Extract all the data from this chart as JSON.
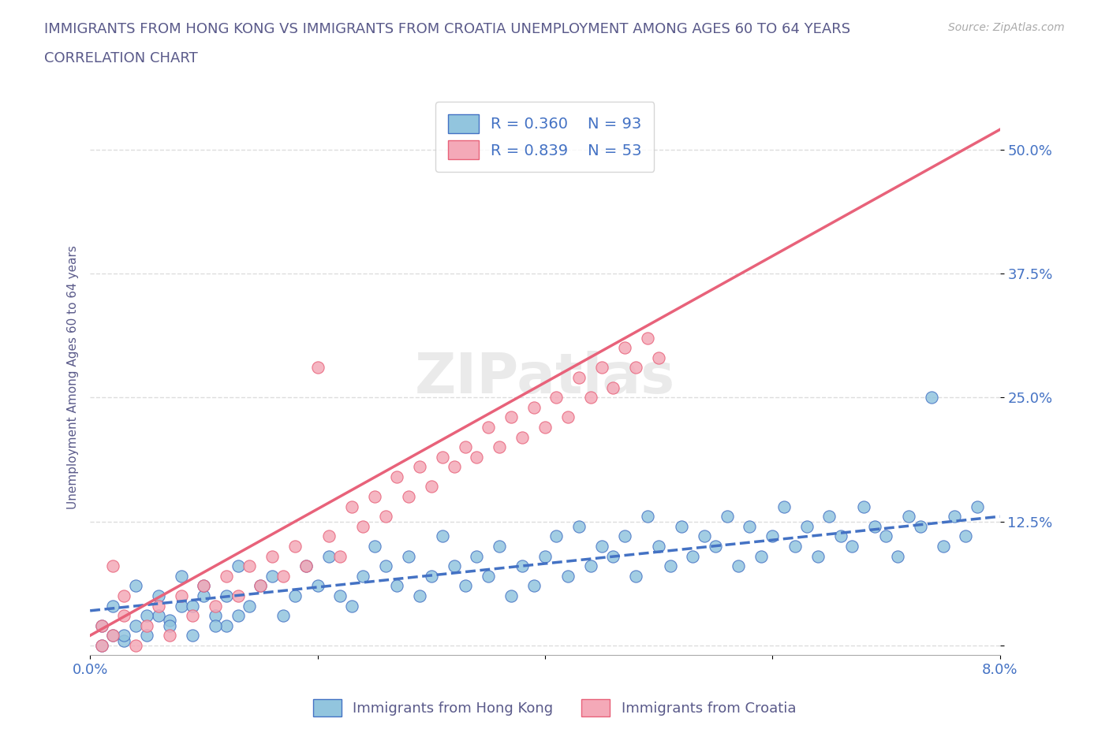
{
  "title_line1": "IMMIGRANTS FROM HONG KONG VS IMMIGRANTS FROM CROATIA UNEMPLOYMENT AMONG AGES 60 TO 64 YEARS",
  "title_line2": "CORRELATION CHART",
  "source_text": "Source: ZipAtlas.com",
  "xlabel": "",
  "ylabel": "Unemployment Among Ages 60 to 64 years",
  "xlim": [
    0.0,
    0.08
  ],
  "ylim": [
    -0.01,
    0.55
  ],
  "xtick_labels": [
    "0.0%",
    "",
    "",
    "",
    "8.0%"
  ],
  "ytick_positions": [
    0.0,
    0.125,
    0.25,
    0.375,
    0.5
  ],
  "ytick_labels": [
    "",
    "12.5%",
    "25.0%",
    "37.5%",
    "50.0%"
  ],
  "hk_color": "#92C5DE",
  "croatia_color": "#F4A9B8",
  "hk_line_color": "#4472C4",
  "croatia_line_color": "#E8627A",
  "R_hk": 0.36,
  "N_hk": 93,
  "R_croatia": 0.839,
  "N_croatia": 53,
  "watermark": "ZIPatlas",
  "legend_entries": [
    "Immigrants from Hong Kong",
    "Immigrants from Croatia"
  ],
  "background_color": "#FFFFFF",
  "grid_color": "#DDDDDD",
  "title_color": "#5A5A8A",
  "hk_scatter": [
    [
      0.001,
      0.0
    ],
    [
      0.002,
      0.01
    ],
    [
      0.003,
      0.005
    ],
    [
      0.004,
      0.02
    ],
    [
      0.005,
      0.01
    ],
    [
      0.006,
      0.03
    ],
    [
      0.007,
      0.025
    ],
    [
      0.008,
      0.04
    ],
    [
      0.009,
      0.01
    ],
    [
      0.01,
      0.05
    ],
    [
      0.011,
      0.03
    ],
    [
      0.012,
      0.02
    ],
    [
      0.013,
      0.08
    ],
    [
      0.014,
      0.04
    ],
    [
      0.015,
      0.06
    ],
    [
      0.016,
      0.07
    ],
    [
      0.017,
      0.03
    ],
    [
      0.018,
      0.05
    ],
    [
      0.019,
      0.08
    ],
    [
      0.02,
      0.06
    ],
    [
      0.021,
      0.09
    ],
    [
      0.022,
      0.05
    ],
    [
      0.023,
      0.04
    ],
    [
      0.024,
      0.07
    ],
    [
      0.025,
      0.1
    ],
    [
      0.026,
      0.08
    ],
    [
      0.027,
      0.06
    ],
    [
      0.028,
      0.09
    ],
    [
      0.029,
      0.05
    ],
    [
      0.03,
      0.07
    ],
    [
      0.031,
      0.11
    ],
    [
      0.032,
      0.08
    ],
    [
      0.033,
      0.06
    ],
    [
      0.034,
      0.09
    ],
    [
      0.035,
      0.07
    ],
    [
      0.036,
      0.1
    ],
    [
      0.037,
      0.05
    ],
    [
      0.038,
      0.08
    ],
    [
      0.039,
      0.06
    ],
    [
      0.04,
      0.09
    ],
    [
      0.041,
      0.11
    ],
    [
      0.042,
      0.07
    ],
    [
      0.043,
      0.12
    ],
    [
      0.044,
      0.08
    ],
    [
      0.045,
      0.1
    ],
    [
      0.046,
      0.09
    ],
    [
      0.047,
      0.11
    ],
    [
      0.048,
      0.07
    ],
    [
      0.049,
      0.13
    ],
    [
      0.05,
      0.1
    ],
    [
      0.051,
      0.08
    ],
    [
      0.052,
      0.12
    ],
    [
      0.053,
      0.09
    ],
    [
      0.054,
      0.11
    ],
    [
      0.055,
      0.1
    ],
    [
      0.056,
      0.13
    ],
    [
      0.057,
      0.08
    ],
    [
      0.058,
      0.12
    ],
    [
      0.059,
      0.09
    ],
    [
      0.06,
      0.11
    ],
    [
      0.061,
      0.14
    ],
    [
      0.062,
      0.1
    ],
    [
      0.063,
      0.12
    ],
    [
      0.064,
      0.09
    ],
    [
      0.065,
      0.13
    ],
    [
      0.066,
      0.11
    ],
    [
      0.067,
      0.1
    ],
    [
      0.068,
      0.14
    ],
    [
      0.069,
      0.12
    ],
    [
      0.07,
      0.11
    ],
    [
      0.071,
      0.09
    ],
    [
      0.072,
      0.13
    ],
    [
      0.073,
      0.12
    ],
    [
      0.074,
      0.25
    ],
    [
      0.075,
      0.1
    ],
    [
      0.076,
      0.13
    ],
    [
      0.077,
      0.11
    ],
    [
      0.078,
      0.14
    ],
    [
      0.001,
      0.02
    ],
    [
      0.002,
      0.04
    ],
    [
      0.003,
      0.01
    ],
    [
      0.004,
      0.06
    ],
    [
      0.005,
      0.03
    ],
    [
      0.006,
      0.05
    ],
    [
      0.007,
      0.02
    ],
    [
      0.008,
      0.07
    ],
    [
      0.009,
      0.04
    ],
    [
      0.01,
      0.06
    ],
    [
      0.011,
      0.02
    ],
    [
      0.012,
      0.05
    ],
    [
      0.013,
      0.03
    ]
  ],
  "croatia_scatter": [
    [
      0.001,
      0.0
    ],
    [
      0.002,
      0.01
    ],
    [
      0.003,
      0.03
    ],
    [
      0.004,
      0.0
    ],
    [
      0.005,
      0.02
    ],
    [
      0.006,
      0.04
    ],
    [
      0.007,
      0.01
    ],
    [
      0.008,
      0.05
    ],
    [
      0.009,
      0.03
    ],
    [
      0.01,
      0.06
    ],
    [
      0.011,
      0.04
    ],
    [
      0.012,
      0.07
    ],
    [
      0.013,
      0.05
    ],
    [
      0.014,
      0.08
    ],
    [
      0.015,
      0.06
    ],
    [
      0.016,
      0.09
    ],
    [
      0.017,
      0.07
    ],
    [
      0.018,
      0.1
    ],
    [
      0.019,
      0.08
    ],
    [
      0.02,
      0.28
    ],
    [
      0.021,
      0.11
    ],
    [
      0.022,
      0.09
    ],
    [
      0.023,
      0.14
    ],
    [
      0.024,
      0.12
    ],
    [
      0.025,
      0.15
    ],
    [
      0.026,
      0.13
    ],
    [
      0.027,
      0.17
    ],
    [
      0.028,
      0.15
    ],
    [
      0.029,
      0.18
    ],
    [
      0.03,
      0.16
    ],
    [
      0.031,
      0.19
    ],
    [
      0.032,
      0.18
    ],
    [
      0.033,
      0.2
    ],
    [
      0.034,
      0.19
    ],
    [
      0.035,
      0.22
    ],
    [
      0.036,
      0.2
    ],
    [
      0.037,
      0.23
    ],
    [
      0.038,
      0.21
    ],
    [
      0.039,
      0.24
    ],
    [
      0.04,
      0.22
    ],
    [
      0.041,
      0.25
    ],
    [
      0.042,
      0.23
    ],
    [
      0.043,
      0.27
    ],
    [
      0.044,
      0.25
    ],
    [
      0.045,
      0.28
    ],
    [
      0.046,
      0.26
    ],
    [
      0.047,
      0.3
    ],
    [
      0.048,
      0.28
    ],
    [
      0.049,
      0.31
    ],
    [
      0.05,
      0.29
    ],
    [
      0.001,
      0.02
    ],
    [
      0.002,
      0.08
    ],
    [
      0.003,
      0.05
    ]
  ],
  "hk_line_x": [
    0.0,
    0.08
  ],
  "hk_line_y": [
    0.035,
    0.13
  ],
  "croatia_line_x": [
    0.0,
    0.08
  ],
  "croatia_line_y": [
    0.01,
    0.52
  ]
}
